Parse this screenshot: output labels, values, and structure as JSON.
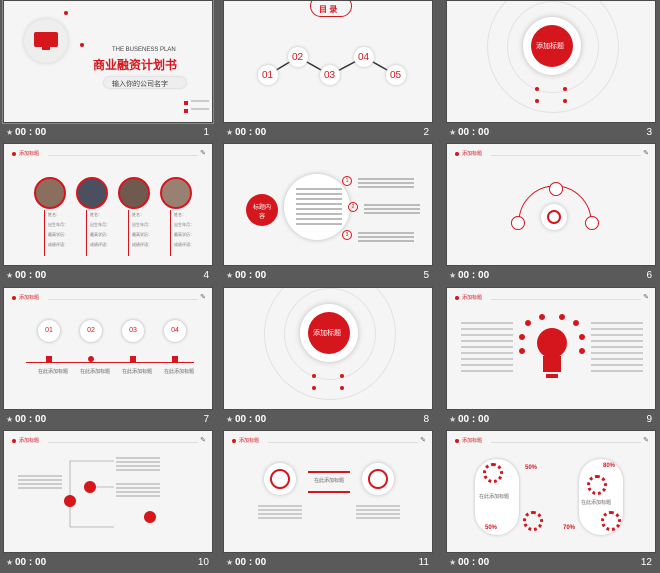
{
  "colors": {
    "accent": "#d5161d",
    "bg": "#5a5a5a",
    "slide_bg": "#f5f5f5"
  },
  "slides": [
    {
      "num": "1",
      "time": "00 : 00",
      "title_en": "THE BUSENESS PLAN",
      "title_cn": "商业融资计划书",
      "subtitle": "输入你的公司名字",
      "icon": "monitor-icon"
    },
    {
      "num": "2",
      "time": "00 : 00",
      "heading": "目 录",
      "items": [
        "01",
        "02",
        "03",
        "04",
        "05"
      ]
    },
    {
      "num": "3",
      "time": "00 : 00",
      "center": "添加标题"
    },
    {
      "num": "4",
      "time": "00 : 00",
      "section": "添加标题",
      "fields": [
        "姓名：",
        "出生年月：",
        "最高学历：",
        "成绩评语："
      ]
    },
    {
      "num": "5",
      "time": "00 : 00",
      "center": "标题内容",
      "steps": [
        "1",
        "2",
        "3"
      ]
    },
    {
      "num": "6",
      "time": "00 : 00",
      "section": "添加标题"
    },
    {
      "num": "7",
      "time": "00 : 00",
      "section": "添加标题",
      "steps": [
        "01",
        "02",
        "03",
        "04"
      ],
      "caption": "在此添加标题"
    },
    {
      "num": "8",
      "time": "00 : 00",
      "center": "添加标题"
    },
    {
      "num": "9",
      "time": "00 : 00",
      "section": "添加标题"
    },
    {
      "num": "10",
      "time": "00 : 00",
      "section": "添加标题"
    },
    {
      "num": "11",
      "time": "00 : 00",
      "section": "添加标题",
      "caption": "在此添加标题"
    },
    {
      "num": "12",
      "time": "00 : 00",
      "section": "添加标题",
      "percents": [
        "50%",
        "80%",
        "50%",
        "70%"
      ],
      "caption": "在此添加标题"
    }
  ]
}
